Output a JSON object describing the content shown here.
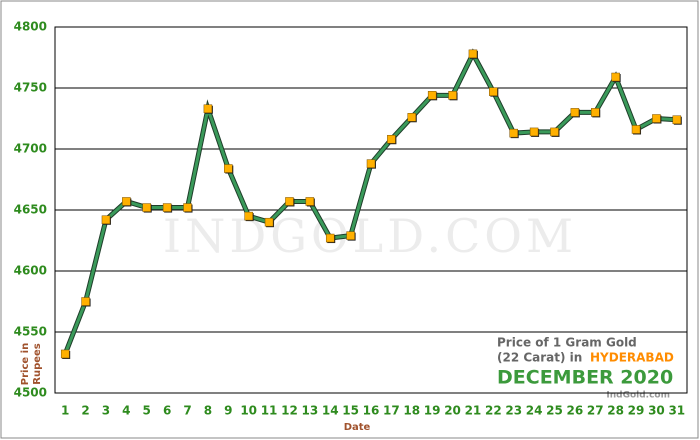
{
  "chart_data": {
    "type": "line",
    "x_label": "Date",
    "y_label": [
      "Price in",
      "Rupees"
    ],
    "watermark": "INDGOLD.COM",
    "annotation": {
      "line1": "Price of 1 Gram Gold",
      "line2": "(22 Carat) in",
      "city": "HYDERABAD",
      "month": "DECEMBER 2020",
      "source": "IndGold.com"
    },
    "categories": [
      "1",
      "2",
      "3",
      "4",
      "5",
      "6",
      "7",
      "8",
      "9",
      "10",
      "11",
      "12",
      "13",
      "14",
      "15",
      "16",
      "17",
      "18",
      "19",
      "20",
      "21",
      "22",
      "23",
      "24",
      "25",
      "26",
      "27",
      "28",
      "29",
      "30",
      "31"
    ],
    "series": [
      {
        "name": "Price",
        "color": "#3a9a5a",
        "marker_color": "#ffb000",
        "values": [
          4532,
          4575,
          4642,
          4657,
          4652,
          4652,
          4652,
          4733,
          4684,
          4645,
          4640,
          4657,
          4657,
          4627,
          4629,
          4688,
          4708,
          4726,
          4744,
          4744,
          4778,
          4747,
          4713,
          4714,
          4714,
          4730,
          4730,
          4759,
          4716,
          4725,
          4724
        ]
      }
    ],
    "ylim": [
      4500,
      4800
    ],
    "yticks": [
      4500,
      4550,
      4600,
      4650,
      4700,
      4750,
      4800
    ],
    "grid": true
  }
}
